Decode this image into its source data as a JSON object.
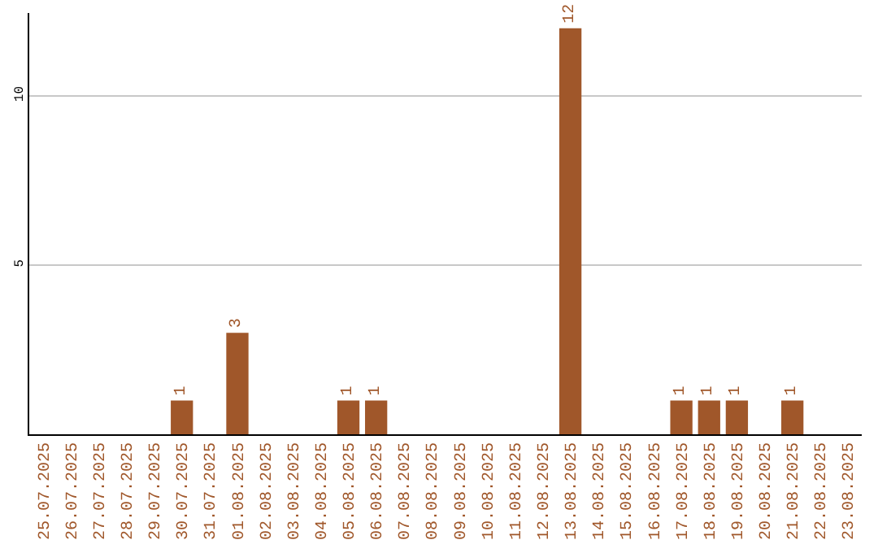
{
  "chart_data": {
    "type": "bar",
    "categories": [
      "25.07.2025",
      "26.07.2025",
      "27.07.2025",
      "28.07.2025",
      "29.07.2025",
      "30.07.2025",
      "31.07.2025",
      "01.08.2025",
      "02.08.2025",
      "03.08.2025",
      "04.08.2025",
      "05.08.2025",
      "06.08.2025",
      "07.08.2025",
      "08.08.2025",
      "09.08.2025",
      "10.08.2025",
      "11.08.2025",
      "12.08.2025",
      "13.08.2025",
      "14.08.2025",
      "15.08.2025",
      "16.08.2025",
      "17.08.2025",
      "18.08.2025",
      "19.08.2025",
      "20.08.2025",
      "21.08.2025",
      "22.08.2025",
      "23.08.2025"
    ],
    "values": [
      0,
      0,
      0,
      0,
      0,
      1,
      0,
      3,
      0,
      0,
      0,
      1,
      1,
      0,
      0,
      0,
      0,
      0,
      0,
      12,
      0,
      0,
      0,
      1,
      1,
      1,
      0,
      1,
      0,
      0
    ],
    "value_labels": [
      null,
      null,
      null,
      null,
      null,
      "1",
      null,
      "3",
      null,
      null,
      null,
      "1",
      "1",
      null,
      null,
      null,
      null,
      null,
      null,
      "12",
      null,
      null,
      null,
      "1",
      "1",
      "1",
      null,
      "1",
      null,
      null
    ],
    "color": "#a0572a",
    "ylim": [
      0,
      12.45
    ],
    "yticks": [
      5,
      10
    ],
    "grid": "y",
    "legend": false
  }
}
